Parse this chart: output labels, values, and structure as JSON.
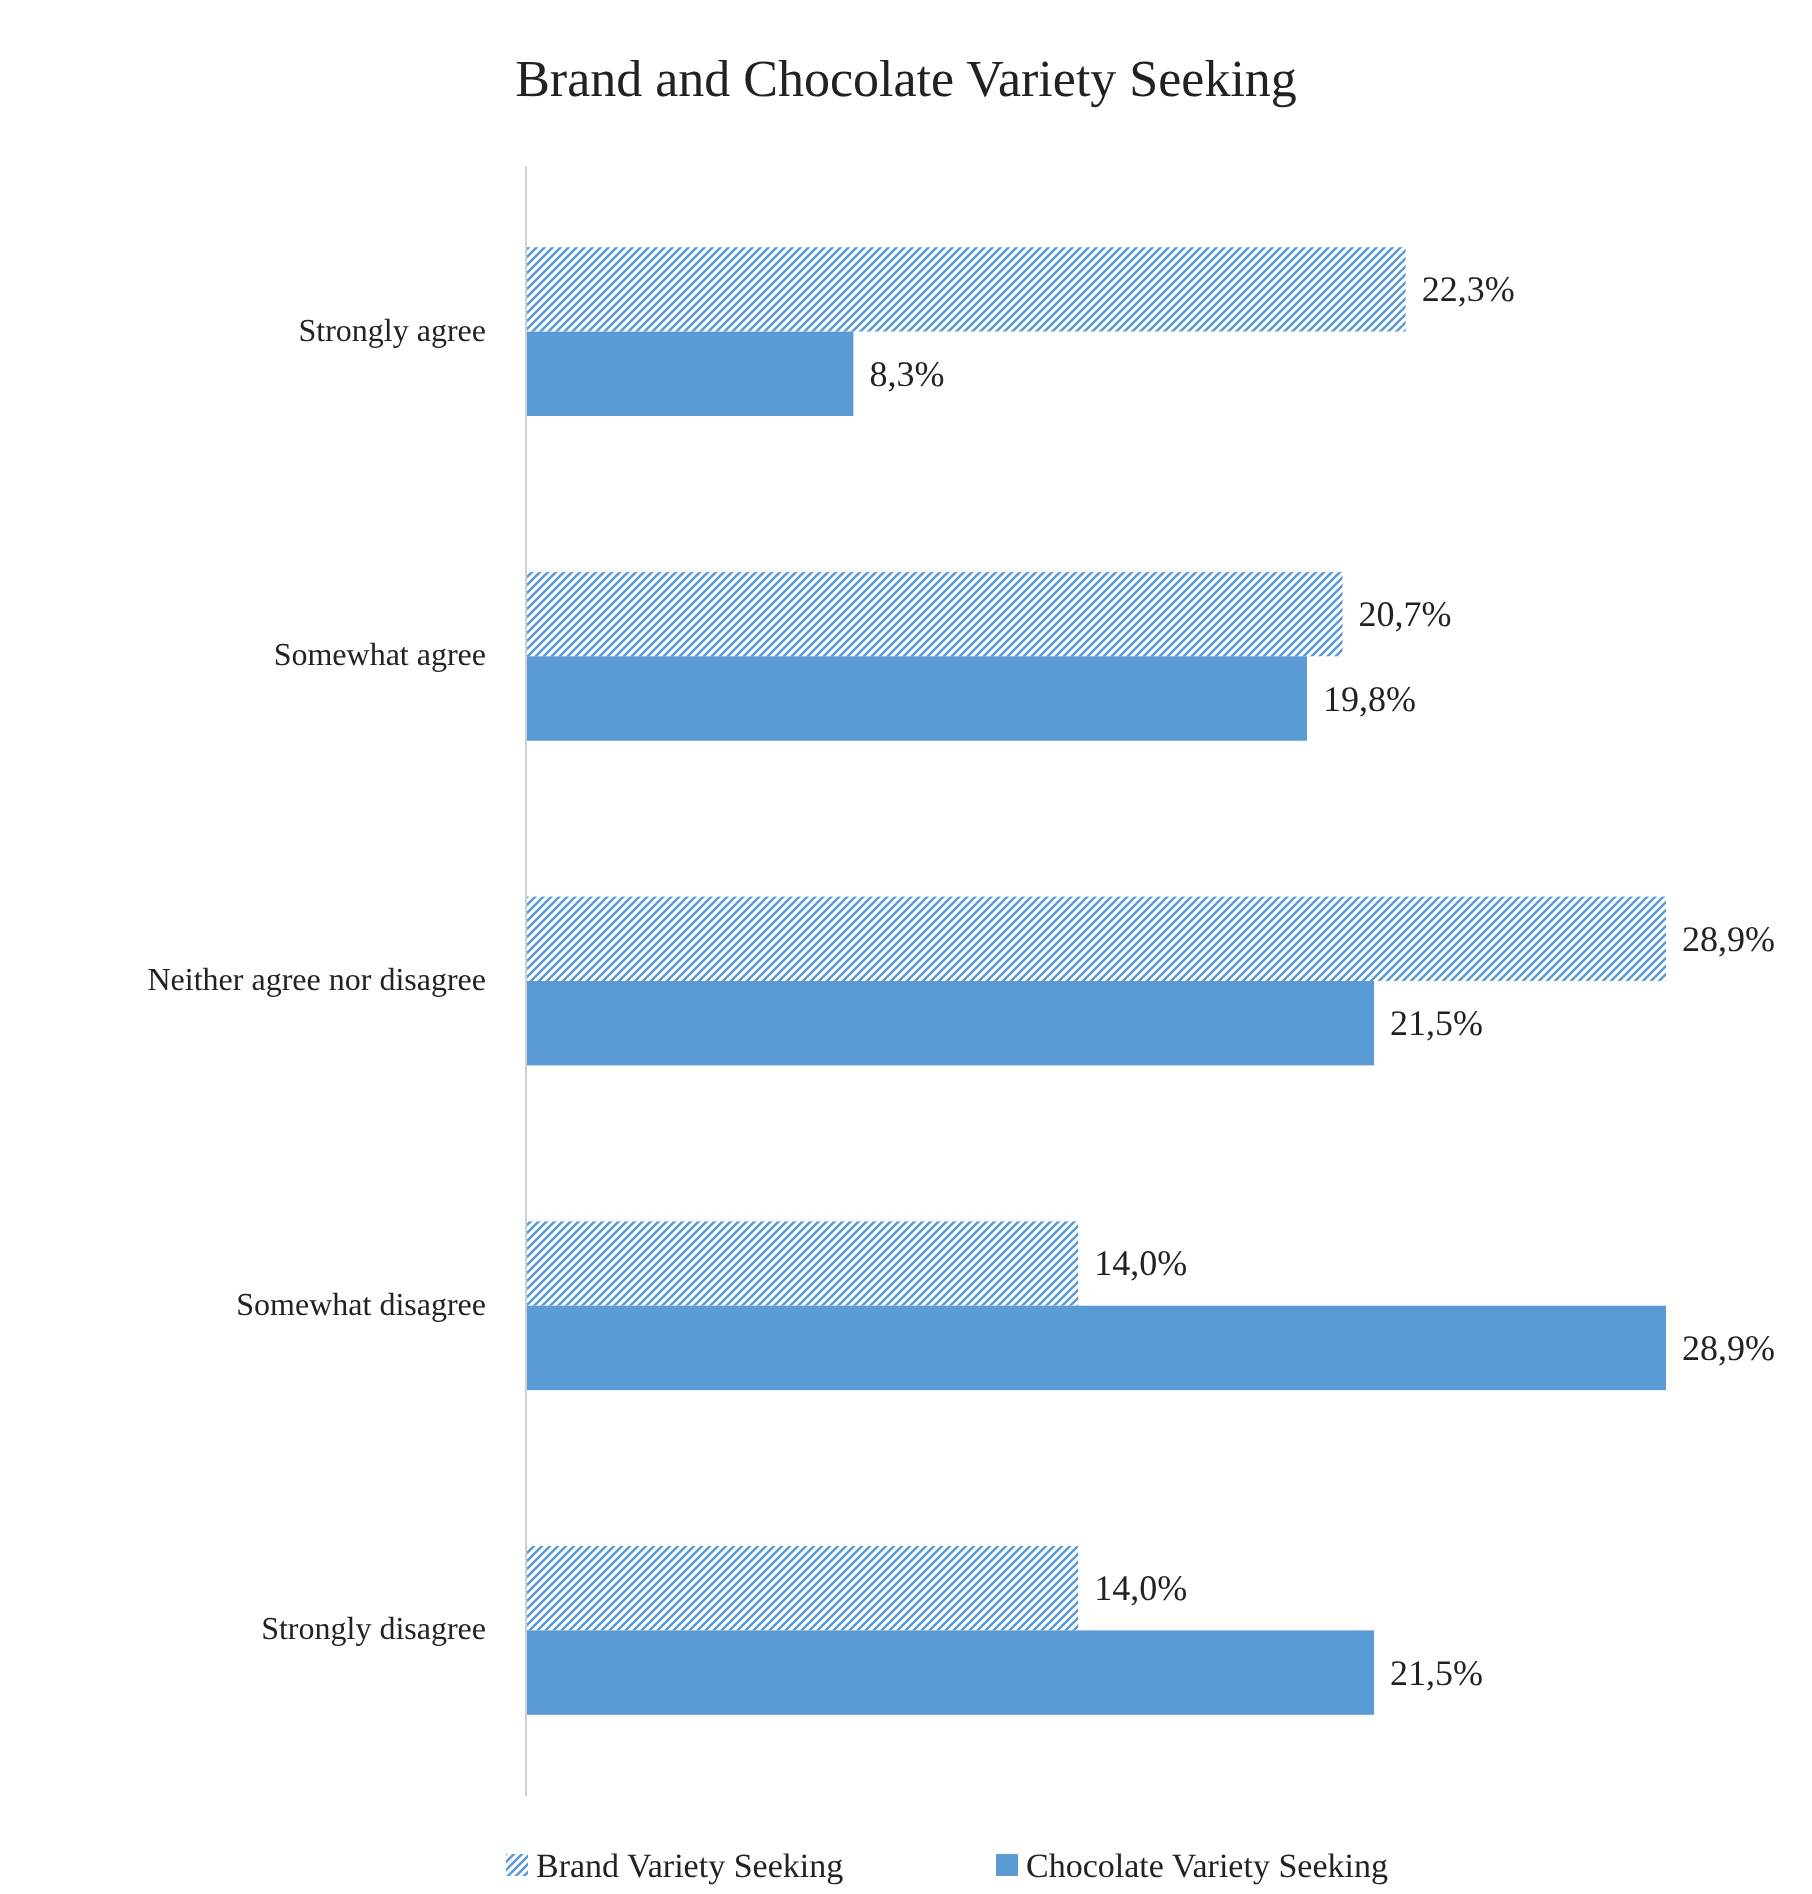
{
  "chart_data": {
    "type": "bar",
    "orientation": "horizontal",
    "title": "Brand and Chocolate Variety Seeking",
    "categories": [
      "Strongly agree",
      "Somewhat agree",
      "Neither agree nor disagree",
      "Somewhat disagree",
      "Strongly disagree"
    ],
    "series": [
      {
        "name": "Brand Variety Seeking",
        "color": "#5b9bd5",
        "values": [
          22.3,
          20.7,
          28.9,
          14.0,
          14.0
        ],
        "value_labels": [
          "22,3%",
          "20,7%",
          "28,9%",
          "14,0%",
          "14,0%"
        ]
      },
      {
        "name": "Chocolate Variety Seeking",
        "color": "#5b9bd5",
        "values": [
          8.3,
          19.8,
          21.5,
          28.9,
          21.5
        ],
        "value_labels": [
          "8,3%",
          "19,8%",
          "21,5%",
          "28,9%",
          "21,5%"
        ]
      }
    ],
    "legend": "bottom",
    "grid": false
  }
}
